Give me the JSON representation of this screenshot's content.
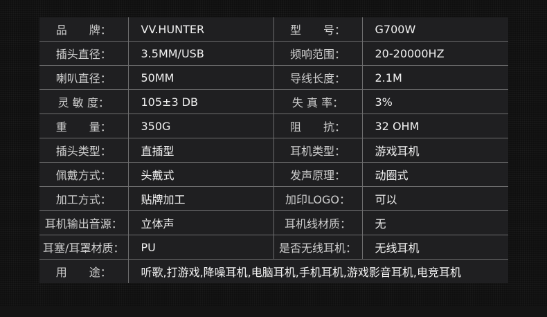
{
  "specs": [
    {
      "l1": "品　　牌：",
      "v1": "VV.HUNTER",
      "l2": "型　　号：",
      "v2": "G700W"
    },
    {
      "l1": "插头直径：",
      "v1": "3.5MM/USB",
      "l2": "频响范围：",
      "v2": "20-20000HZ"
    },
    {
      "l1": "喇叭直径：",
      "v1": "50MM",
      "l2": "导线长度：",
      "v2": "2.1M"
    },
    {
      "l1": "灵 敏 度：",
      "v1": "105±3 DB",
      "l2": "失 真 率：",
      "v2": "3%"
    },
    {
      "l1": "重　　量：",
      "v1": "350G",
      "l2": "阻　　抗：",
      "v2": "32 OHM"
    },
    {
      "l1": "插头类型：",
      "v1": "直插型",
      "l2": "耳机类型：",
      "v2": "游戏耳机"
    },
    {
      "l1": "佩戴方式：",
      "v1": "头戴式",
      "l2": "发声原理：",
      "v2": "动圈式"
    },
    {
      "l1": "加工方式：",
      "v1": "贴牌加工",
      "l2": "加印LOGO：",
      "v2": "可以"
    },
    {
      "l1": "耳机输出音源：",
      "v1": "立体声",
      "l2": "耳机线材质：",
      "v2": "无"
    },
    {
      "l1": "耳塞/耳罩材质：",
      "v1": "PU",
      "l2": "是否无线耳机：",
      "v2": "无线耳机"
    }
  ],
  "usage": {
    "label": "用　　途：",
    "value": "听歌,打游戏,降噪耳机,电脑耳机,手机耳机,游戏影音耳机,电竞耳机"
  }
}
